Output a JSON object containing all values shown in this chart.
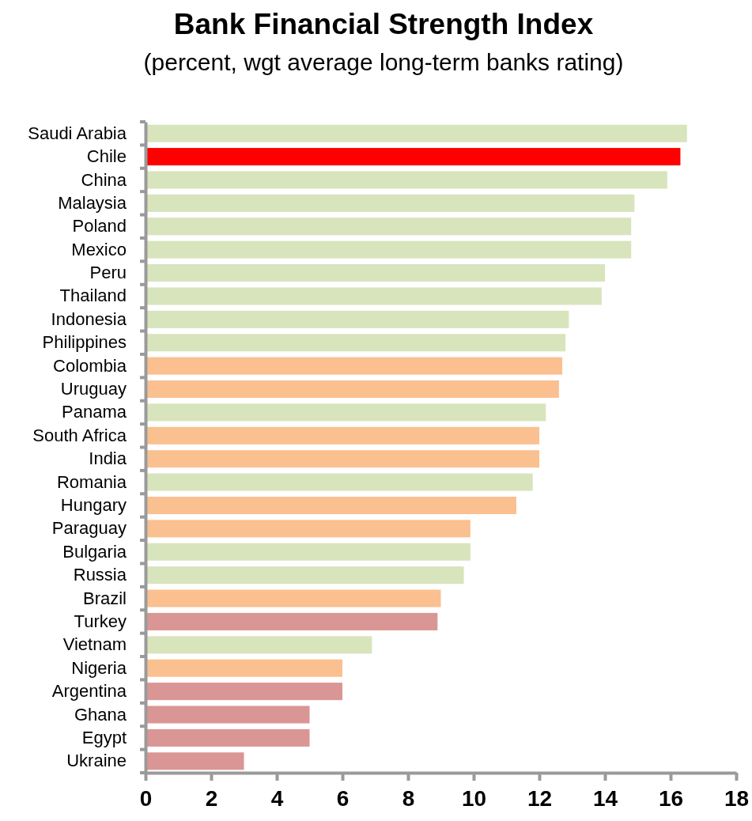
{
  "chart_data": {
    "type": "bar",
    "orientation": "horizontal",
    "title": "Bank Financial Strength Index",
    "subtitle": "(percent, wgt average long-term banks rating)",
    "categories": [
      "Saudi Arabia",
      "Chile",
      "China",
      "Malaysia",
      "Poland",
      "Mexico",
      "Peru",
      "Thailand",
      "Indonesia",
      "Philippines",
      "Colombia",
      "Uruguay",
      "Panama",
      "South Africa",
      "India",
      "Romania",
      "Hungary",
      "Paraguay",
      "Bulgaria",
      "Russia",
      "Brazil",
      "Turkey",
      "Vietnam",
      "Nigeria",
      "Argentina",
      "Ghana",
      "Egypt",
      "Ukraine"
    ],
    "values": [
      16.5,
      16.3,
      15.9,
      14.9,
      14.8,
      14.8,
      14.0,
      13.9,
      12.9,
      12.8,
      12.7,
      12.6,
      12.2,
      12.0,
      12.0,
      11.8,
      11.3,
      9.9,
      9.9,
      9.7,
      9.0,
      8.9,
      6.9,
      6.0,
      6.0,
      5.0,
      5.0,
      3.0
    ],
    "colors": [
      "#d8e4bc",
      "#ff0000",
      "#d8e4bc",
      "#d8e4bc",
      "#d8e4bc",
      "#d8e4bc",
      "#d8e4bc",
      "#d8e4bc",
      "#d8e4bc",
      "#d8e4bc",
      "#fac090",
      "#fac090",
      "#d8e4bc",
      "#fac090",
      "#fac090",
      "#d8e4bc",
      "#fac090",
      "#fac090",
      "#d8e4bc",
      "#d8e4bc",
      "#fac090",
      "#da9694",
      "#d8e4bc",
      "#fac090",
      "#da9694",
      "#da9694",
      "#da9694",
      "#da9694"
    ],
    "xlim": [
      0,
      18
    ],
    "xticks": [
      0,
      2,
      4,
      6,
      8,
      10,
      12,
      14,
      16,
      18
    ],
    "grid": false
  }
}
